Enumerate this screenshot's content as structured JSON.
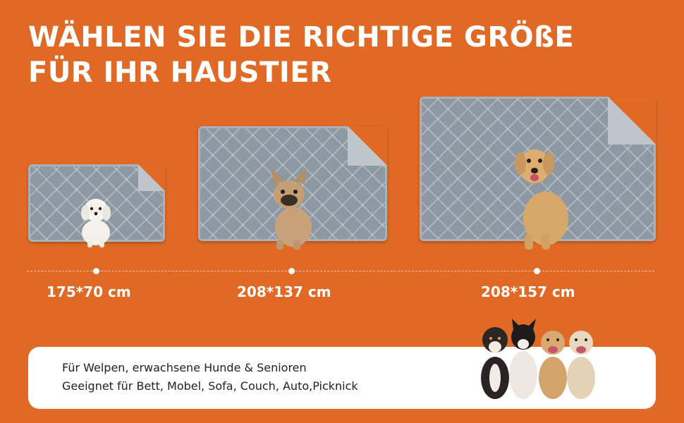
{
  "headline": {
    "line1": "WÄHLEN SIE DIE RICHTIGE GRÖßE",
    "line2": "FÜR IHR HAUSTIER"
  },
  "sizes": [
    {
      "label": "175*70 cm",
      "dog": "maltese-puppy"
    },
    {
      "label": "208*137 cm",
      "dog": "french-bulldog"
    },
    {
      "label": "208*157 cm",
      "dog": "labrador"
    }
  ],
  "info": {
    "line1": "Für Welpen, erwachsene Hunde & Senioren",
    "line2": "Geeignet für Bett, Mobel, Sofa, Couch, Auto,Picknick"
  },
  "colors": {
    "background": "#E06A25",
    "mat": "#8D98A3",
    "text": "#FFFFFF"
  }
}
